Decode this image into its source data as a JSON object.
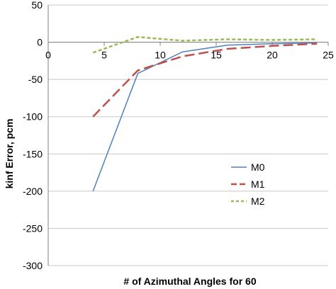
{
  "chart_data": {
    "type": "line",
    "xlabel": "# of Azimuthal Angles for 60",
    "ylabel": "kinf Error, pcm",
    "xlim": [
      0,
      25
    ],
    "ylim": [
      -300,
      50
    ],
    "x_ticks": [
      "0",
      "5",
      "10",
      "15",
      "20",
      "25"
    ],
    "y_ticks": [
      "50",
      "0",
      "-50",
      "-100",
      "-150",
      "-200",
      "-250",
      "-300"
    ],
    "grid": "horizontal",
    "legend_position": "right",
    "series": [
      {
        "name": "M0",
        "color": "#4f81bd",
        "style": "solid",
        "x": [
          4,
          8,
          12,
          16,
          20,
          24
        ],
        "y": [
          -200,
          -42,
          -13,
          -4,
          -2,
          -1
        ]
      },
      {
        "name": "M1",
        "color": "#c0504d",
        "style": "long-dash",
        "x": [
          4,
          8,
          12,
          16,
          20,
          24
        ],
        "y": [
          -100,
          -38,
          -19,
          -9,
          -5,
          -2
        ]
      },
      {
        "name": "M2",
        "color": "#9bbb59",
        "style": "short-dash",
        "x": [
          4,
          8,
          12,
          16,
          20,
          24
        ],
        "y": [
          -14,
          7,
          2,
          4,
          3,
          4
        ]
      }
    ]
  }
}
